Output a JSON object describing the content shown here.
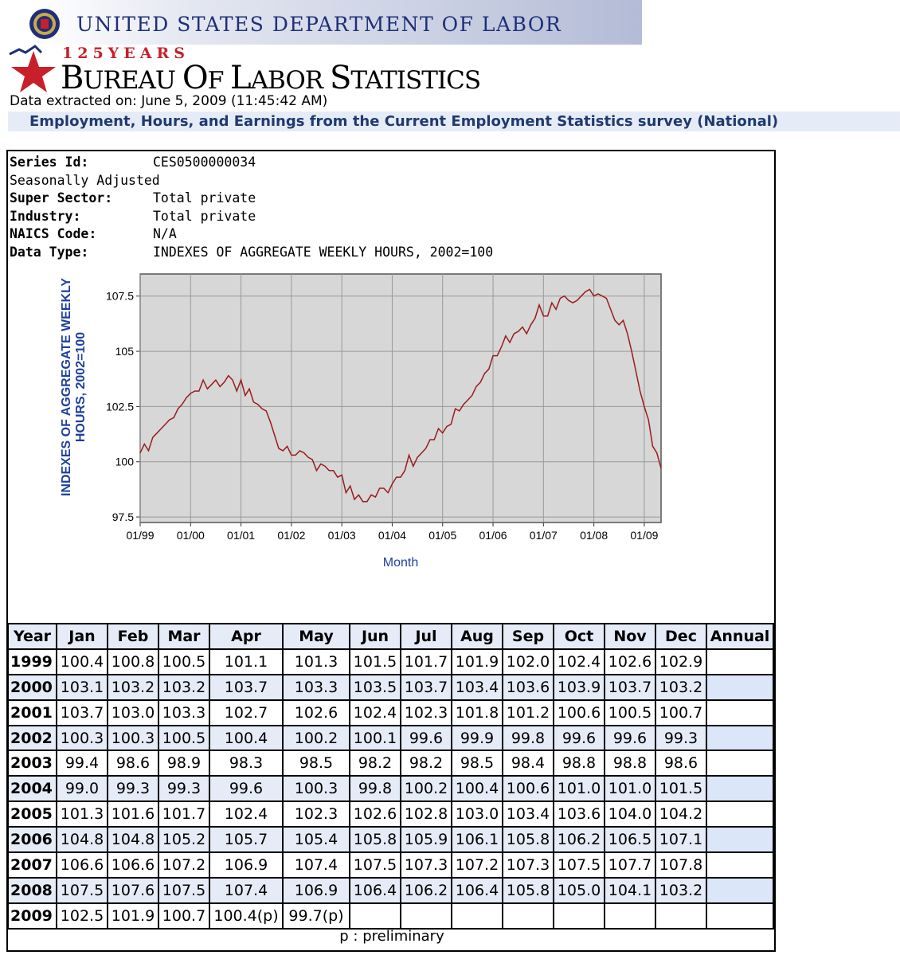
{
  "header": {
    "agency": "UNITED STATES DEPARTMENT OF LABOR",
    "anniversary": "125YEARS",
    "bureau": "BUREAU OF LABOR STATISTICS",
    "extracted": "Data extracted on: June 5, 2009 (11:45:42 AM)",
    "survey_title": "Employment, Hours, and Earnings from the Current Employment Statistics survey (National)"
  },
  "series": [
    {
      "label": "Series Id:",
      "value": "CES0500000034",
      "bold": true
    },
    {
      "label": "Seasonally Adjusted",
      "value": "",
      "bold": false
    },
    {
      "label": "Super Sector:",
      "value": "Total private",
      "bold": true
    },
    {
      "label": "Industry:",
      "value": "Total private",
      "bold": true
    },
    {
      "label": "NAICS Code:",
      "value": "N/A",
      "bold": true
    },
    {
      "label": "Data Type:",
      "value": "INDEXES OF AGGREGATE WEEKLY HOURS, 2002=100",
      "bold": true
    }
  ],
  "colors": {
    "line": "#9b1b1b",
    "plot_bg": "#d7d7d7",
    "axis_label": "#1f3fa0",
    "header_bg": "#e6ecf7"
  },
  "chart_data": {
    "type": "line",
    "xlabel": "Month",
    "ylabel_lines": [
      "INDEXES OF AGGREGATE WEEKLY",
      "HOURS, 2002=100"
    ],
    "ylim": [
      97.25,
      108.5
    ],
    "yticks": [
      97.5,
      100,
      102.5,
      105,
      107.5
    ],
    "ytick_labels": [
      "97.5",
      "100",
      "102.5",
      "105",
      "107.5"
    ],
    "xticks": [
      "01/99",
      "01/00",
      "01/01",
      "01/02",
      "01/03",
      "01/04",
      "01/05",
      "01/06",
      "01/07",
      "01/08",
      "01/09"
    ],
    "grid": true,
    "start": "1999-01",
    "series": [
      {
        "values": [
          100.4,
          100.8,
          100.5,
          101.1,
          101.3,
          101.5,
          101.7,
          101.9,
          102.0,
          102.4,
          102.6,
          102.9,
          103.1,
          103.2,
          103.2,
          103.7,
          103.3,
          103.5,
          103.7,
          103.4,
          103.6,
          103.9,
          103.7,
          103.2,
          103.7,
          103.0,
          103.3,
          102.7,
          102.6,
          102.4,
          102.3,
          101.8,
          101.2,
          100.6,
          100.5,
          100.7,
          100.3,
          100.3,
          100.5,
          100.4,
          100.2,
          100.1,
          99.6,
          99.9,
          99.8,
          99.6,
          99.6,
          99.3,
          99.4,
          98.6,
          98.9,
          98.3,
          98.5,
          98.2,
          98.2,
          98.5,
          98.4,
          98.8,
          98.8,
          98.6,
          99.0,
          99.3,
          99.3,
          99.6,
          100.3,
          99.8,
          100.2,
          100.4,
          100.6,
          101.0,
          101.0,
          101.5,
          101.3,
          101.6,
          101.7,
          102.4,
          102.3,
          102.6,
          102.8,
          103.0,
          103.4,
          103.6,
          104.0,
          104.2,
          104.8,
          104.8,
          105.2,
          105.7,
          105.4,
          105.8,
          105.9,
          106.1,
          105.8,
          106.2,
          106.5,
          107.1,
          106.6,
          106.6,
          107.2,
          106.9,
          107.4,
          107.5,
          107.3,
          107.2,
          107.3,
          107.5,
          107.7,
          107.8,
          107.5,
          107.6,
          107.5,
          107.4,
          106.9,
          106.4,
          106.2,
          106.4,
          105.8,
          105.0,
          104.1,
          103.2,
          102.5,
          101.9,
          100.7,
          100.4,
          99.7
        ]
      }
    ]
  },
  "table": {
    "headers": [
      "Year",
      "Jan",
      "Feb",
      "Mar",
      "Apr",
      "May",
      "Jun",
      "Jul",
      "Aug",
      "Sep",
      "Oct",
      "Nov",
      "Dec",
      "Annual"
    ],
    "rows": [
      {
        "year": "1999",
        "values": [
          "100.4",
          "100.8",
          "100.5",
          "101.1",
          "101.3",
          "101.5",
          "101.7",
          "101.9",
          "102.0",
          "102.4",
          "102.6",
          "102.9"
        ],
        "annual": ""
      },
      {
        "year": "2000",
        "values": [
          "103.1",
          "103.2",
          "103.2",
          "103.7",
          "103.3",
          "103.5",
          "103.7",
          "103.4",
          "103.6",
          "103.9",
          "103.7",
          "103.2"
        ],
        "annual": ""
      },
      {
        "year": "2001",
        "values": [
          "103.7",
          "103.0",
          "103.3",
          "102.7",
          "102.6",
          "102.4",
          "102.3",
          "101.8",
          "101.2",
          "100.6",
          "100.5",
          "100.7"
        ],
        "annual": ""
      },
      {
        "year": "2002",
        "values": [
          "100.3",
          "100.3",
          "100.5",
          "100.4",
          "100.2",
          "100.1",
          "99.6",
          "99.9",
          "99.8",
          "99.6",
          "99.6",
          "99.3"
        ],
        "annual": ""
      },
      {
        "year": "2003",
        "values": [
          "99.4",
          "98.6",
          "98.9",
          "98.3",
          "98.5",
          "98.2",
          "98.2",
          "98.5",
          "98.4",
          "98.8",
          "98.8",
          "98.6"
        ],
        "annual": ""
      },
      {
        "year": "2004",
        "values": [
          "99.0",
          "99.3",
          "99.3",
          "99.6",
          "100.3",
          "99.8",
          "100.2",
          "100.4",
          "100.6",
          "101.0",
          "101.0",
          "101.5"
        ],
        "annual": ""
      },
      {
        "year": "2005",
        "values": [
          "101.3",
          "101.6",
          "101.7",
          "102.4",
          "102.3",
          "102.6",
          "102.8",
          "103.0",
          "103.4",
          "103.6",
          "104.0",
          "104.2"
        ],
        "annual": ""
      },
      {
        "year": "2006",
        "values": [
          "104.8",
          "104.8",
          "105.2",
          "105.7",
          "105.4",
          "105.8",
          "105.9",
          "106.1",
          "105.8",
          "106.2",
          "106.5",
          "107.1"
        ],
        "annual": ""
      },
      {
        "year": "2007",
        "values": [
          "106.6",
          "106.6",
          "107.2",
          "106.9",
          "107.4",
          "107.5",
          "107.3",
          "107.2",
          "107.3",
          "107.5",
          "107.7",
          "107.8"
        ],
        "annual": ""
      },
      {
        "year": "2008",
        "values": [
          "107.5",
          "107.6",
          "107.5",
          "107.4",
          "106.9",
          "106.4",
          "106.2",
          "106.4",
          "105.8",
          "105.0",
          "104.1",
          "103.2"
        ],
        "annual": ""
      },
      {
        "year": "2009",
        "values": [
          "102.5",
          "101.9",
          "100.7",
          "100.4(p)",
          "99.7(p)",
          "",
          "",
          "",
          "",
          "",
          "",
          ""
        ],
        "annual": ""
      }
    ],
    "footnote": "p : preliminary"
  }
}
